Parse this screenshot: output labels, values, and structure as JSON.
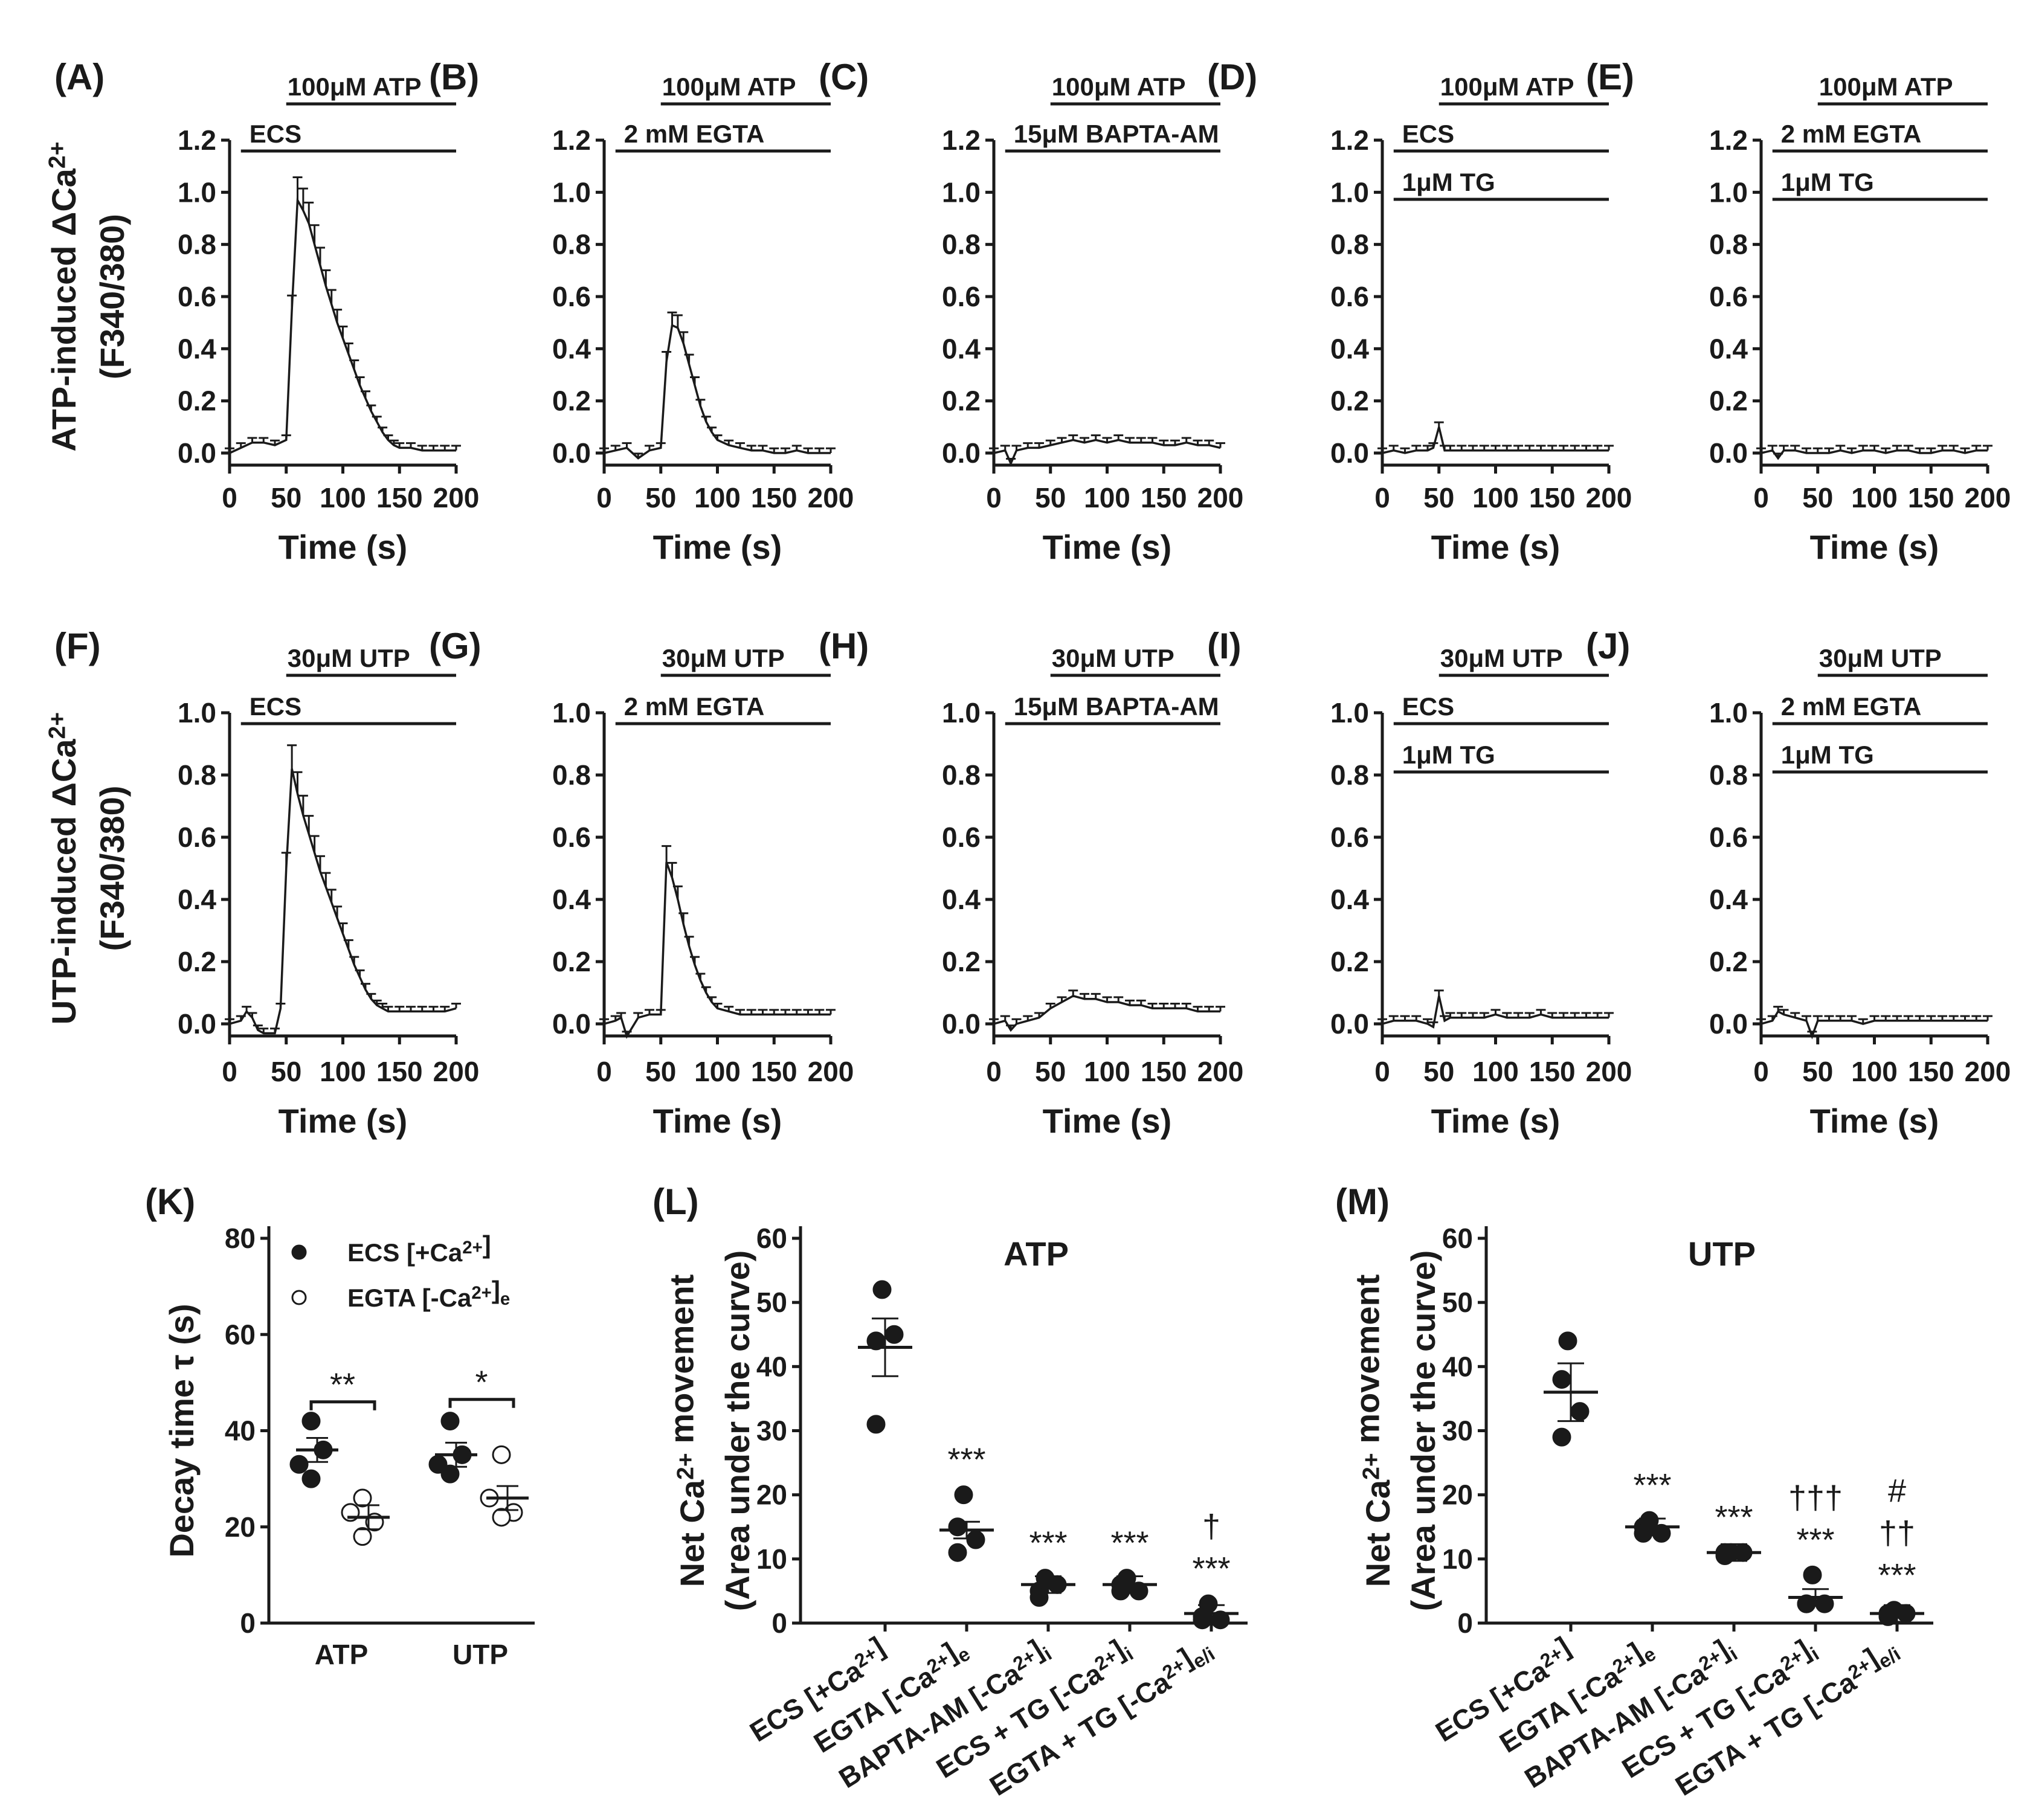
{
  "chart_data": [
    {
      "id": "A",
      "type": "line",
      "label": "(A)",
      "bars": [
        "100μM ATP",
        "ECS"
      ],
      "ylabel": "ATP-induced ΔCa2+",
      "ylabel2": "(F340/380)",
      "xlabel": "Time (s)",
      "xticks": [
        "0",
        "50",
        "100",
        "150",
        "200"
      ],
      "yticks": [
        "0.0",
        "0.2",
        "0.4",
        "0.6",
        "0.8",
        "1.0",
        "1.2"
      ],
      "ylim": [
        0,
        1.2
      ],
      "xlim": [
        0,
        200
      ],
      "series_x": [
        0,
        10,
        20,
        30,
        40,
        50,
        55,
        60,
        65,
        70,
        75,
        80,
        85,
        90,
        95,
        100,
        105,
        110,
        115,
        120,
        125,
        130,
        135,
        140,
        145,
        150,
        160,
        170,
        180,
        190,
        200
      ],
      "series_y": [
        0.0,
        0.02,
        0.04,
        0.04,
        0.03,
        0.05,
        0.55,
        0.97,
        0.93,
        0.88,
        0.8,
        0.72,
        0.64,
        0.57,
        0.5,
        0.44,
        0.38,
        0.32,
        0.26,
        0.21,
        0.16,
        0.12,
        0.08,
        0.05,
        0.03,
        0.02,
        0.02,
        0.01,
        0.01,
        0.01,
        0.01
      ]
    },
    {
      "id": "B",
      "type": "line",
      "label": "(B)",
      "bars": [
        "100μM ATP",
        "2 mM EGTA"
      ],
      "xlabel": "Time (s)",
      "xticks": [
        "0",
        "50",
        "100",
        "150",
        "200"
      ],
      "yticks": [
        "0.0",
        "0.2",
        "0.4",
        "0.6",
        "0.8",
        "1.0",
        "1.2"
      ],
      "ylim": [
        0,
        1.2
      ],
      "xlim": [
        0,
        200
      ],
      "series_x": [
        0,
        10,
        20,
        30,
        40,
        50,
        55,
        60,
        65,
        70,
        75,
        80,
        85,
        90,
        95,
        100,
        110,
        120,
        130,
        140,
        150,
        160,
        170,
        180,
        190,
        200
      ],
      "series_y": [
        0.0,
        0.01,
        0.02,
        -0.02,
        0.01,
        0.02,
        0.35,
        0.49,
        0.48,
        0.42,
        0.34,
        0.26,
        0.18,
        0.12,
        0.08,
        0.05,
        0.03,
        0.02,
        0.01,
        0.01,
        0.0,
        0.0,
        0.01,
        0.0,
        0.0,
        0.0
      ]
    },
    {
      "id": "C",
      "type": "line",
      "label": "(C)",
      "bars": [
        "100μM ATP",
        "15μM BAPTA-AM"
      ],
      "xlabel": "Time (s)",
      "xticks": [
        "0",
        "50",
        "100",
        "150",
        "200"
      ],
      "yticks": [
        "0.0",
        "0.2",
        "0.4",
        "0.6",
        "0.8",
        "1.0",
        "1.2"
      ],
      "ylim": [
        0,
        1.2
      ],
      "xlim": [
        0,
        200
      ],
      "series_x": [
        0,
        10,
        15,
        20,
        30,
        40,
        50,
        60,
        70,
        80,
        90,
        100,
        110,
        120,
        130,
        140,
        150,
        160,
        170,
        180,
        190,
        200
      ],
      "series_y": [
        0.0,
        0.01,
        -0.04,
        0.01,
        0.02,
        0.02,
        0.03,
        0.04,
        0.05,
        0.04,
        0.05,
        0.04,
        0.05,
        0.04,
        0.04,
        0.04,
        0.03,
        0.03,
        0.04,
        0.03,
        0.03,
        0.02
      ]
    },
    {
      "id": "D",
      "type": "line",
      "label": "(D)",
      "bars": [
        "100μM ATP",
        "ECS",
        "1μM TG"
      ],
      "xlabel": "Time (s)",
      "xticks": [
        "0",
        "50",
        "100",
        "150",
        "200"
      ],
      "yticks": [
        "0.0",
        "0.2",
        "0.4",
        "0.6",
        "0.8",
        "1.0",
        "1.2"
      ],
      "ylim": [
        0,
        1.2
      ],
      "xlim": [
        0,
        200
      ],
      "series_x": [
        0,
        10,
        20,
        30,
        40,
        45,
        50,
        55,
        60,
        70,
        80,
        90,
        100,
        110,
        120,
        130,
        140,
        150,
        160,
        170,
        180,
        190,
        200
      ],
      "series_y": [
        0.0,
        0.01,
        0.0,
        0.01,
        0.01,
        0.02,
        0.1,
        0.01,
        0.01,
        0.01,
        0.01,
        0.01,
        0.01,
        0.01,
        0.01,
        0.01,
        0.01,
        0.01,
        0.01,
        0.01,
        0.01,
        0.01,
        0.01
      ]
    },
    {
      "id": "E",
      "type": "line",
      "label": "(E)",
      "bars": [
        "100μM ATP",
        "2 mM EGTA",
        "1μM TG"
      ],
      "xlabel": "Time (s)",
      "xticks": [
        "0",
        "50",
        "100",
        "150",
        "200"
      ],
      "yticks": [
        "0.0",
        "0.2",
        "0.4",
        "0.6",
        "0.8",
        "1.0",
        "1.2"
      ],
      "ylim": [
        0,
        1.2
      ],
      "xlim": [
        0,
        200
      ],
      "series_x": [
        0,
        10,
        15,
        20,
        30,
        40,
        50,
        60,
        70,
        80,
        90,
        100,
        110,
        120,
        130,
        140,
        150,
        160,
        170,
        180,
        190,
        200
      ],
      "series_y": [
        0.0,
        0.01,
        -0.02,
        0.01,
        0.01,
        0.0,
        0.0,
        0.0,
        0.01,
        0.0,
        0.01,
        0.01,
        0.0,
        0.01,
        0.01,
        0.0,
        0.0,
        0.01,
        0.01,
        0.0,
        0.01,
        0.01
      ]
    },
    {
      "id": "F",
      "type": "line",
      "label": "(F)",
      "bars": [
        "30μM UTP",
        "ECS"
      ],
      "ylabel": "UTP-induced ΔCa2+",
      "ylabel2": "(F340/380)",
      "xlabel": "Time (s)",
      "xticks": [
        "0",
        "50",
        "100",
        "150",
        "200"
      ],
      "yticks": [
        "0.0",
        "0.2",
        "0.4",
        "0.6",
        "0.8",
        "1.0"
      ],
      "ylim": [
        0,
        1.0
      ],
      "xlim": [
        0,
        200
      ],
      "series_x": [
        0,
        10,
        15,
        20,
        25,
        30,
        40,
        45,
        50,
        55,
        60,
        65,
        70,
        75,
        80,
        85,
        90,
        95,
        100,
        105,
        110,
        115,
        120,
        125,
        130,
        135,
        140,
        150,
        160,
        170,
        180,
        190,
        200
      ],
      "series_y": [
        0.0,
        0.01,
        0.04,
        0.02,
        -0.02,
        -0.03,
        -0.03,
        0.05,
        0.5,
        0.82,
        0.74,
        0.67,
        0.61,
        0.55,
        0.49,
        0.44,
        0.39,
        0.34,
        0.29,
        0.24,
        0.19,
        0.15,
        0.11,
        0.08,
        0.06,
        0.05,
        0.04,
        0.04,
        0.04,
        0.04,
        0.04,
        0.04,
        0.05
      ]
    },
    {
      "id": "G",
      "type": "line",
      "label": "(G)",
      "bars": [
        "30μM UTP",
        "2 mM EGTA"
      ],
      "xlabel": "Time (s)",
      "xticks": [
        "0",
        "50",
        "100",
        "150",
        "200"
      ],
      "yticks": [
        "0.0",
        "0.2",
        "0.4",
        "0.6",
        "0.8",
        "1.0"
      ],
      "ylim": [
        0,
        1.0
      ],
      "xlim": [
        0,
        200
      ],
      "series_x": [
        0,
        10,
        15,
        20,
        30,
        40,
        50,
        55,
        60,
        65,
        70,
        75,
        80,
        85,
        90,
        95,
        100,
        110,
        120,
        130,
        140,
        150,
        160,
        170,
        180,
        190,
        200
      ],
      "series_y": [
        0.0,
        0.01,
        0.02,
        -0.04,
        0.02,
        0.03,
        0.03,
        0.52,
        0.47,
        0.4,
        0.32,
        0.25,
        0.19,
        0.14,
        0.1,
        0.07,
        0.05,
        0.04,
        0.03,
        0.03,
        0.03,
        0.03,
        0.03,
        0.03,
        0.03,
        0.03,
        0.03
      ]
    },
    {
      "id": "H",
      "type": "line",
      "label": "(H)",
      "bars": [
        "30μM UTP",
        "15μM BAPTA-AM"
      ],
      "xlabel": "Time (s)",
      "xticks": [
        "0",
        "50",
        "100",
        "150",
        "200"
      ],
      "yticks": [
        "0.0",
        "0.2",
        "0.4",
        "0.6",
        "0.8",
        "1.0"
      ],
      "ylim": [
        0,
        1.0
      ],
      "xlim": [
        0,
        200
      ],
      "series_x": [
        0,
        10,
        15,
        20,
        30,
        40,
        50,
        60,
        70,
        80,
        90,
        100,
        110,
        120,
        130,
        140,
        150,
        160,
        170,
        180,
        190,
        200
      ],
      "series_y": [
        0.0,
        0.01,
        -0.02,
        0.0,
        0.01,
        0.02,
        0.05,
        0.07,
        0.09,
        0.08,
        0.08,
        0.07,
        0.07,
        0.06,
        0.06,
        0.05,
        0.05,
        0.05,
        0.05,
        0.04,
        0.04,
        0.04
      ]
    },
    {
      "id": "I",
      "type": "line",
      "label": "(I)",
      "bars": [
        "30μM UTP",
        "ECS",
        "1μM TG"
      ],
      "xlabel": "Time (s)",
      "xticks": [
        "0",
        "50",
        "100",
        "150",
        "200"
      ],
      "yticks": [
        "0.0",
        "0.2",
        "0.4",
        "0.6",
        "0.8",
        "1.0"
      ],
      "ylim": [
        0,
        1.0
      ],
      "xlim": [
        0,
        200
      ],
      "series_x": [
        0,
        10,
        20,
        30,
        40,
        45,
        50,
        55,
        60,
        70,
        80,
        90,
        100,
        110,
        120,
        130,
        140,
        150,
        160,
        170,
        180,
        190,
        200
      ],
      "series_y": [
        0.0,
        0.01,
        0.01,
        0.01,
        0.0,
        -0.01,
        0.09,
        0.01,
        0.02,
        0.02,
        0.02,
        0.02,
        0.03,
        0.02,
        0.02,
        0.02,
        0.03,
        0.02,
        0.02,
        0.02,
        0.02,
        0.02,
        0.02
      ]
    },
    {
      "id": "J",
      "type": "line",
      "label": "(J)",
      "bars": [
        "30μM UTP",
        "2 mM EGTA",
        "1μM TG"
      ],
      "xlabel": "Time (s)",
      "xticks": [
        "0",
        "50",
        "100",
        "150",
        "200"
      ],
      "yticks": [
        "0.0",
        "0.2",
        "0.4",
        "0.6",
        "0.8",
        "1.0"
      ],
      "ylim": [
        0,
        1.0
      ],
      "xlim": [
        0,
        200
      ],
      "series_x": [
        0,
        10,
        15,
        20,
        30,
        40,
        45,
        50,
        60,
        70,
        80,
        90,
        100,
        110,
        120,
        130,
        140,
        150,
        160,
        170,
        180,
        190,
        200
      ],
      "series_y": [
        0.0,
        0.01,
        0.04,
        0.03,
        0.02,
        0.01,
        -0.04,
        0.01,
        0.01,
        0.01,
        0.01,
        0.0,
        0.01,
        0.01,
        0.01,
        0.01,
        0.01,
        0.01,
        0.01,
        0.01,
        0.01,
        0.01,
        0.01
      ]
    },
    {
      "id": "K",
      "type": "scatter",
      "label": "(K)",
      "ylabel": "Decay time τ (s)",
      "categories": [
        "ATP",
        "UTP"
      ],
      "yticks": [
        "0",
        "20",
        "40",
        "60",
        "80"
      ],
      "ylim": [
        0,
        80
      ],
      "legend": [
        "ECS [+Ca2+]",
        "EGTA [-Ca2+]e"
      ],
      "series": [
        {
          "name": "ECS [+Ca2+]",
          "points": [
            [
              42,
              33,
              36,
              30
            ],
            [
              42,
              33,
              35,
              31
            ]
          ],
          "mean": [
            36,
            35
          ]
        },
        {
          "name": "EGTA [-Ca2+]e",
          "points": [
            [
              26,
              23,
              21,
              18
            ],
            [
              35,
              26,
              23,
              22
            ]
          ],
          "mean": [
            22,
            26
          ]
        }
      ],
      "annotations": [
        "**",
        "*"
      ]
    },
    {
      "id": "L",
      "type": "scatter",
      "label": "(L)",
      "title": "ATP",
      "ylabel": "Net Ca2+ movement",
      "ylabel2": "(Area under the curve)",
      "categories": [
        "ECS [+Ca2+]",
        "EGTA [-Ca2+]e",
        "BAPTA-AM [-Ca2+]i",
        "ECS + TG [-Ca2+]i",
        "EGTA + TG [-Ca2+]e/i"
      ],
      "yticks": [
        "0",
        "10",
        "20",
        "30",
        "40",
        "50",
        "60"
      ],
      "ylim": [
        0,
        60
      ],
      "points": [
        [
          52,
          44,
          45,
          31
        ],
        [
          20,
          15,
          13,
          11
        ],
        [
          7,
          5,
          6,
          4
        ],
        [
          7,
          6,
          5,
          5
        ],
        [
          3,
          1,
          0.5,
          0.5
        ]
      ],
      "mean": [
        43,
        14.5,
        6,
        6,
        1.5
      ],
      "annotations": [
        "",
        "***",
        "***",
        "***",
        "†|***"
      ]
    },
    {
      "id": "M",
      "type": "scatter",
      "label": "(M)",
      "title": "UTP",
      "ylabel": "Net Ca2+ movement",
      "ylabel2": "(Area under the curve)",
      "categories": [
        "ECS [+Ca2+]",
        "EGTA [-Ca2+]e",
        "BAPTA-AM [-Ca2+]i",
        "ECS + TG [-Ca2+]i",
        "EGTA + TG [-Ca2+]e/i"
      ],
      "yticks": [
        "0",
        "10",
        "20",
        "30",
        "40",
        "50",
        "60"
      ],
      "ylim": [
        0,
        60
      ],
      "points": [
        [
          44,
          38,
          33,
          29
        ],
        [
          16,
          15,
          14,
          14
        ],
        [
          11,
          11,
          11,
          10.5
        ],
        [
          7.5,
          3,
          3,
          3
        ],
        [
          2,
          1.5,
          1.5,
          1
        ]
      ],
      "mean": [
        36,
        15,
        11,
        4,
        1.5
      ],
      "annotations": [
        "",
        "***",
        "***",
        "†††|***",
        "#|††|***"
      ]
    }
  ]
}
